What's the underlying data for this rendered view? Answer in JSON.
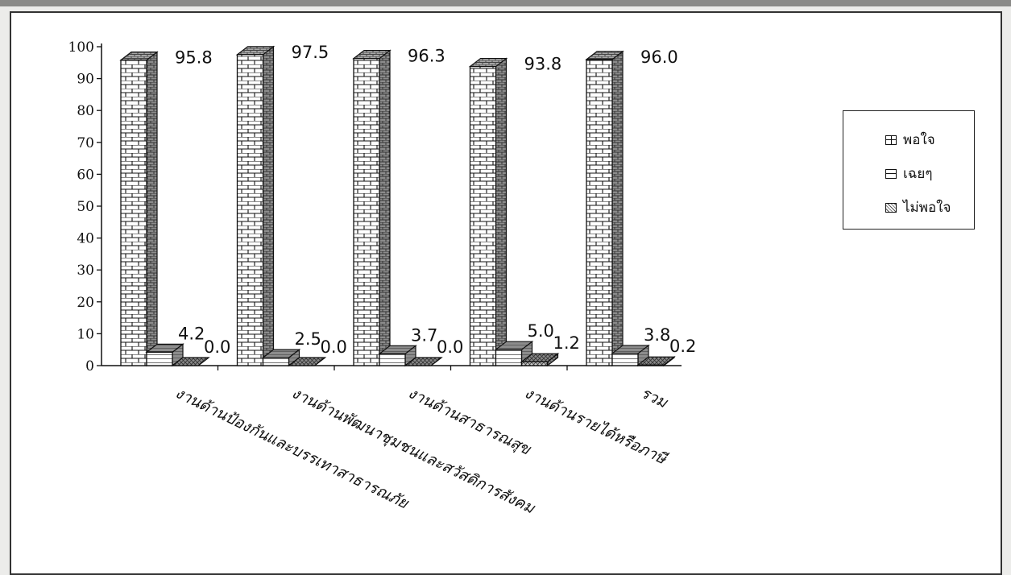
{
  "chart_data": {
    "type": "bar",
    "categories": [
      "งานด้านป้องกันและบรรเทาสาธารณภัย",
      "งานด้านพัฒนาชุมชนและสวัสดิการสังคม",
      "งานด้านสาธารณสุข",
      "งานด้านรายได้หรือภาษี",
      "รวม"
    ],
    "series": [
      {
        "name": "พอใจ",
        "values": [
          95.8,
          97.5,
          96.3,
          93.8,
          96.0
        ]
      },
      {
        "name": "เฉยๆ",
        "values": [
          4.2,
          2.5,
          3.7,
          5.0,
          3.8
        ]
      },
      {
        "name": "ไม่พอใจ",
        "values": [
          0.0,
          0.0,
          0.0,
          1.2,
          0.2
        ]
      }
    ],
    "value_labels": [
      [
        "95.8",
        "97.5",
        "96.3",
        "93.8",
        "96.0"
      ],
      [
        "4.2",
        "2.5",
        "3.7",
        "5.0",
        "3.8"
      ],
      [
        "0.0",
        "0.0",
        "0.0",
        "1.2",
        "0.2"
      ]
    ],
    "yticks": [
      "0",
      "10",
      "20",
      "30",
      "40",
      "50",
      "60",
      "70",
      "80",
      "90",
      "100"
    ],
    "ylim": [
      0,
      100
    ],
    "legend_position": "right",
    "grid": false,
    "style": "3d-bar-with-patterns"
  }
}
